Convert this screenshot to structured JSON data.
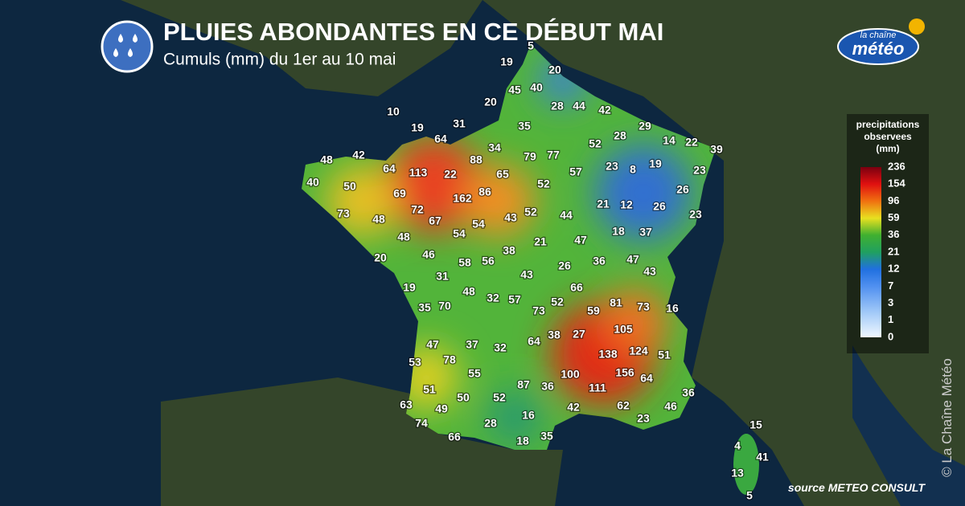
{
  "header": {
    "title": "PLUIES ABONDANTES EN CE DÉBUT MAI",
    "subtitle": "Cumuls (mm) du 1er au 10 mai"
  },
  "logo": {
    "line1": "la chaîne",
    "line2": "météo"
  },
  "legend": {
    "title": [
      "precipitations",
      "observees",
      "(mm)"
    ],
    "labels": [
      236,
      154,
      96,
      59,
      36,
      21,
      12,
      7,
      3,
      1,
      0
    ]
  },
  "stations": [
    5,
    19,
    20,
    45,
    40,
    20,
    28,
    44,
    42,
    10,
    31,
    19,
    35,
    29,
    64,
    28,
    52,
    14,
    22,
    39,
    34,
    48,
    42,
    88,
    79,
    77,
    64,
    113,
    22,
    65,
    23,
    8,
    19,
    23,
    57,
    40,
    50,
    52,
    69,
    162,
    86,
    26,
    73,
    48,
    72,
    67,
    54,
    43,
    52,
    44,
    21,
    12,
    26,
    23,
    54,
    48,
    18,
    37,
    47,
    21,
    38,
    20,
    46,
    58,
    56,
    47,
    36,
    26,
    31,
    43,
    43,
    66,
    19,
    48,
    32,
    57,
    35,
    70,
    73,
    52,
    81,
    73,
    16,
    59,
    105,
    47,
    37,
    32,
    64,
    38,
    27,
    138,
    124,
    51,
    53,
    78,
    55,
    100,
    156,
    64,
    87,
    36,
    51,
    111,
    36,
    50,
    52,
    63,
    49,
    42,
    62,
    46,
    16,
    74,
    28,
    23,
    15,
    66,
    18,
    35,
    4,
    41,
    13,
    5
  ],
  "source": "source METEO CONSULT",
  "copyright": "© La Chaîne Météo"
}
